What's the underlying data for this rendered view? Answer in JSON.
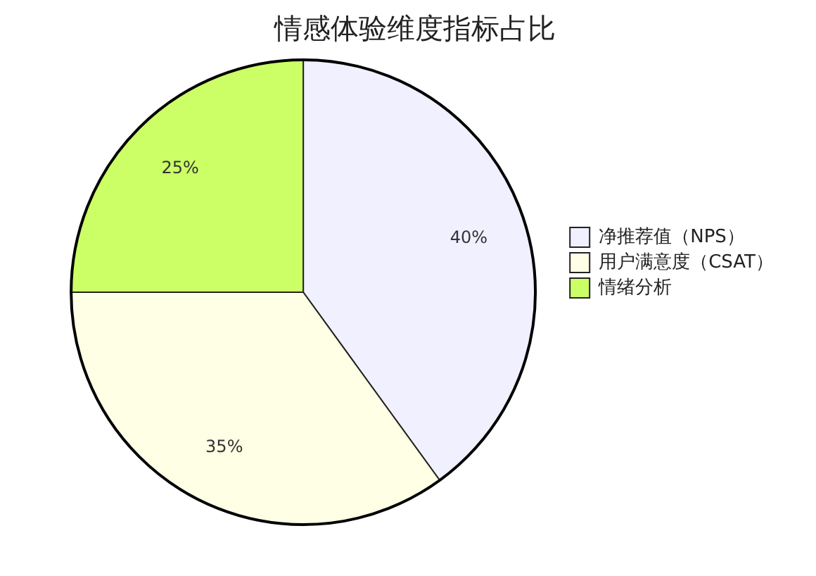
{
  "chart_data": {
    "type": "pie",
    "title": "情感体验维度指标占比",
    "categories": [
      "净推荐值（NPS）",
      "用户满意度（CSAT）",
      "情绪分析"
    ],
    "values": [
      40,
      35,
      25
    ],
    "colors": [
      "#f0f0ff",
      "#ffffe6",
      "#ccff66"
    ],
    "value_labels": [
      "40%",
      "35%",
      "25%"
    ],
    "legend": "right"
  }
}
